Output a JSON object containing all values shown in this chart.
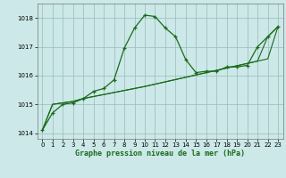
{
  "x": [
    0,
    1,
    2,
    3,
    4,
    5,
    6,
    7,
    8,
    9,
    10,
    11,
    12,
    13,
    14,
    15,
    16,
    17,
    18,
    19,
    20,
    21,
    22,
    23
  ],
  "curve_main": [
    1014.1,
    1014.7,
    1015.0,
    1015.05,
    1015.2,
    1015.45,
    1015.55,
    1015.85,
    1016.95,
    1017.65,
    1018.1,
    1018.05,
    1017.65,
    1017.35,
    1016.55,
    1016.1,
    1016.15,
    1016.15,
    1016.3,
    1016.3,
    1016.35,
    1017.0,
    1017.35,
    1017.7
  ],
  "curve_line1": [
    1014.1,
    1015.0,
    1015.05,
    1015.1,
    1015.2,
    1015.27,
    1015.34,
    1015.41,
    1015.48,
    1015.55,
    1015.62,
    1015.7,
    1015.78,
    1015.86,
    1015.94,
    1016.02,
    1016.1,
    1016.18,
    1016.26,
    1016.34,
    1016.42,
    1016.5,
    1016.58,
    1017.7
  ],
  "curve_line2": [
    1014.1,
    1015.0,
    1015.05,
    1015.1,
    1015.2,
    1015.27,
    1015.34,
    1015.41,
    1015.48,
    1015.55,
    1015.62,
    1015.7,
    1015.78,
    1015.86,
    1015.94,
    1016.02,
    1016.1,
    1016.18,
    1016.26,
    1016.34,
    1016.42,
    1016.5,
    1017.35,
    1017.7
  ],
  "ylim": [
    1013.8,
    1018.5
  ],
  "xlim": [
    -0.5,
    23.5
  ],
  "yticks": [
    1014,
    1015,
    1016,
    1017,
    1018
  ],
  "xticks": [
    0,
    1,
    2,
    3,
    4,
    5,
    6,
    7,
    8,
    9,
    10,
    11,
    12,
    13,
    14,
    15,
    16,
    17,
    18,
    19,
    20,
    21,
    22,
    23
  ],
  "xlabel": "Graphe pression niveau de la mer (hPa)",
  "line_color": "#1a6b1a",
  "bg_color": "#cce8e8",
  "grid_color": "#99bbbb"
}
